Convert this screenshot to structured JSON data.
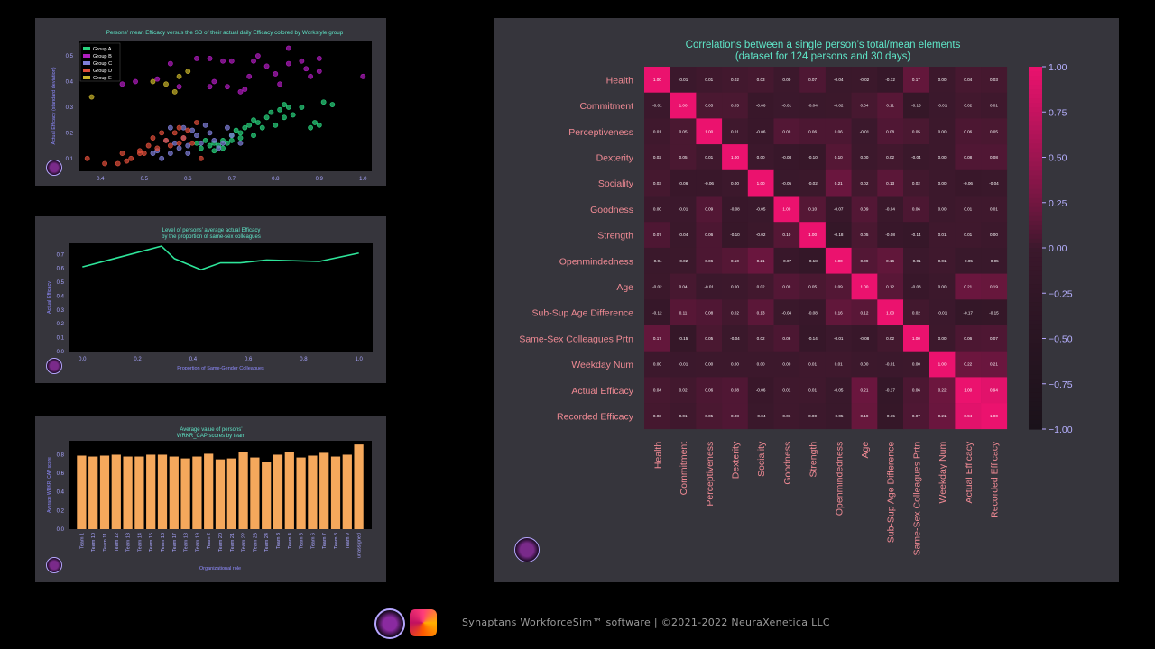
{
  "footer": {
    "text": "Synaptans WorkforceSim™ software |  ©2021-2022 NeuraXenetica LLC"
  },
  "chart_data": [
    {
      "id": "scatter",
      "type": "scatter",
      "title": "Persons’ mean Efficacy versus the SD of their actual daily Efficacy colored by Workstyle group",
      "xlabel": "Actual Efficacy (mean)",
      "ylabel": "Actual Efficacy (standard deviation)",
      "xlim": [
        0.35,
        1.02
      ],
      "ylim": [
        0.05,
        0.56
      ],
      "xticks": [
        "0.4",
        "0.5",
        "0.6",
        "0.7",
        "0.8",
        "0.9",
        "1.0"
      ],
      "yticks": [
        "0.1",
        "0.2",
        "0.3",
        "0.4",
        "0.5"
      ],
      "legend_position": "top-left",
      "series": [
        {
          "name": "Group A",
          "color": "#29d37e",
          "points": [
            [
              0.62,
              0.16
            ],
            [
              0.63,
              0.14
            ],
            [
              0.64,
              0.17
            ],
            [
              0.65,
              0.15
            ],
            [
              0.66,
              0.13
            ],
            [
              0.66,
              0.16
            ],
            [
              0.67,
              0.15
            ],
            [
              0.68,
              0.17
            ],
            [
              0.68,
              0.14
            ],
            [
              0.69,
              0.16
            ],
            [
              0.7,
              0.17
            ],
            [
              0.7,
              0.19
            ],
            [
              0.71,
              0.21
            ],
            [
              0.72,
              0.2
            ],
            [
              0.72,
              0.18
            ],
            [
              0.73,
              0.22
            ],
            [
              0.74,
              0.23
            ],
            [
              0.75,
              0.19
            ],
            [
              0.75,
              0.25
            ],
            [
              0.76,
              0.24
            ],
            [
              0.77,
              0.22
            ],
            [
              0.78,
              0.26
            ],
            [
              0.79,
              0.28
            ],
            [
              0.8,
              0.23
            ],
            [
              0.81,
              0.29
            ],
            [
              0.82,
              0.26
            ],
            [
              0.82,
              0.31
            ],
            [
              0.83,
              0.3
            ],
            [
              0.84,
              0.27
            ],
            [
              0.86,
              0.3
            ],
            [
              0.88,
              0.22
            ],
            [
              0.89,
              0.24
            ],
            [
              0.9,
              0.23
            ],
            [
              0.91,
              0.32
            ],
            [
              0.93,
              0.31
            ]
          ]
        },
        {
          "name": "Group B",
          "color": "#b01dbf",
          "points": [
            [
              0.45,
              0.39
            ],
            [
              0.48,
              0.4
            ],
            [
              0.53,
              0.41
            ],
            [
              0.56,
              0.47
            ],
            [
              0.58,
              0.38
            ],
            [
              0.62,
              0.49
            ],
            [
              0.65,
              0.49
            ],
            [
              0.68,
              0.48
            ],
            [
              0.7,
              0.48
            ],
            [
              0.66,
              0.4
            ],
            [
              0.69,
              0.38
            ],
            [
              0.72,
              0.36
            ],
            [
              0.74,
              0.42
            ],
            [
              0.76,
              0.5
            ],
            [
              0.78,
              0.46
            ],
            [
              0.8,
              0.43
            ],
            [
              0.81,
              0.39
            ],
            [
              0.83,
              0.47
            ],
            [
              0.83,
              0.53
            ],
            [
              0.86,
              0.48
            ],
            [
              0.87,
              0.45
            ],
            [
              0.88,
              0.42
            ],
            [
              0.9,
              0.49
            ],
            [
              0.9,
              0.44
            ],
            [
              0.73,
              0.37
            ],
            [
              0.75,
              0.48
            ],
            [
              1.0,
              0.42
            ],
            [
              0.65,
              0.38
            ]
          ]
        },
        {
          "name": "Group C",
          "color": "#7f7fd8",
          "points": [
            [
              0.53,
              0.13
            ],
            [
              0.54,
              0.1
            ],
            [
              0.55,
              0.17
            ],
            [
              0.56,
              0.12
            ],
            [
              0.57,
              0.16
            ],
            [
              0.58,
              0.14
            ],
            [
              0.59,
              0.18
            ],
            [
              0.6,
              0.15
            ],
            [
              0.6,
              0.12
            ],
            [
              0.61,
              0.21
            ],
            [
              0.62,
              0.19
            ],
            [
              0.64,
              0.23
            ],
            [
              0.65,
              0.2
            ],
            [
              0.66,
              0.17
            ],
            [
              0.67,
              0.14
            ],
            [
              0.68,
              0.16
            ],
            [
              0.69,
              0.22
            ],
            [
              0.7,
              0.19
            ],
            [
              0.52,
              0.12
            ],
            [
              0.56,
              0.22
            ],
            [
              0.63,
              0.16
            ],
            [
              0.72,
              0.16
            ],
            [
              0.59,
              0.22
            ]
          ]
        },
        {
          "name": "Group D",
          "color": "#e04f3b",
          "points": [
            [
              0.37,
              0.1
            ],
            [
              0.41,
              0.08
            ],
            [
              0.44,
              0.08
            ],
            [
              0.45,
              0.12
            ],
            [
              0.46,
              0.09
            ],
            [
              0.47,
              0.1
            ],
            [
              0.49,
              0.13
            ],
            [
              0.5,
              0.12
            ],
            [
              0.51,
              0.15
            ],
            [
              0.52,
              0.18
            ],
            [
              0.53,
              0.14
            ],
            [
              0.55,
              0.17
            ],
            [
              0.56,
              0.15
            ],
            [
              0.57,
              0.2
            ],
            [
              0.58,
              0.22
            ],
            [
              0.59,
              0.18
            ],
            [
              0.6,
              0.21
            ],
            [
              0.61,
              0.16
            ],
            [
              0.62,
              0.24
            ],
            [
              0.63,
              0.1
            ],
            [
              0.54,
              0.2
            ],
            [
              0.58,
              0.16
            ],
            [
              0.49,
              0.12
            ]
          ]
        },
        {
          "name": "Group E",
          "color": "#c8b42b",
          "points": [
            [
              0.38,
              0.34
            ],
            [
              0.52,
              0.4
            ],
            [
              0.57,
              0.36
            ],
            [
              0.58,
              0.42
            ],
            [
              0.6,
              0.44
            ],
            [
              0.55,
              0.39
            ]
          ]
        }
      ]
    },
    {
      "id": "line",
      "type": "line",
      "title": "Level of persons’ average actual Efficacy\nby the proportion of same-sex colleagues",
      "xlabel": "Proportion of Same-Gender Colleagues",
      "ylabel": "Actual Efficacy",
      "xlim": [
        -0.05,
        1.05
      ],
      "ylim": [
        0,
        0.78
      ],
      "xticks": [
        "0.0",
        "0.2",
        "0.4",
        "0.6",
        "0.8",
        "1.0"
      ],
      "yticks": [
        "0.0",
        "0.1",
        "0.2",
        "0.3",
        "0.4",
        "0.5",
        "0.6",
        "0.7"
      ],
      "color": "#2ee59a",
      "x": [
        0.0,
        0.286,
        0.333,
        0.429,
        0.5,
        0.571,
        0.667,
        0.857,
        1.0
      ],
      "y": [
        0.61,
        0.76,
        0.67,
        0.59,
        0.64,
        0.64,
        0.66,
        0.65,
        0.71
      ]
    },
    {
      "id": "bar",
      "type": "bar",
      "title": "Average value of persons’\nWRKR_CAP scores by team",
      "xlabel": "Organizational role",
      "ylabel": "Average WRKR_CAP score",
      "ylim": [
        0,
        0.95
      ],
      "yticks": [
        "0.0",
        "0.2",
        "0.4",
        "0.6",
        "0.8"
      ],
      "color": "#f5a85c",
      "categories": [
        "Team 1",
        "Team 10",
        "Team 11",
        "Team 12",
        "Team 13",
        "Team 14",
        "Team 15",
        "Team 16",
        "Team 17",
        "Team 18",
        "Team 19",
        "Team 2",
        "Team 20",
        "Team 21",
        "Team 22",
        "Team 23",
        "Team 24",
        "Team 3",
        "Team 4",
        "Team 5",
        "Team 6",
        "Team 7",
        "Team 8",
        "Team 9",
        "unassigned"
      ],
      "values": [
        0.79,
        0.78,
        0.79,
        0.8,
        0.78,
        0.78,
        0.8,
        0.8,
        0.78,
        0.76,
        0.78,
        0.81,
        0.75,
        0.76,
        0.83,
        0.77,
        0.72,
        0.8,
        0.83,
        0.77,
        0.79,
        0.82,
        0.78,
        0.8,
        0.91
      ]
    },
    {
      "id": "heatmap",
      "type": "heatmap",
      "title": "Correlations between a single person’s total/mean elements\n(dataset for 124 persons and 30 days)",
      "labels": [
        "Health",
        "Commitment",
        "Perceptiveness",
        "Dexterity",
        "Sociality",
        "Goodness",
        "Strength",
        "Openmindedness",
        "Age",
        "Sub-Sup Age Difference",
        "Same-Sex Colleagues Prtn",
        "Weekday Num",
        "Actual Efficacy",
        "Recorded Efficacy"
      ],
      "colorbar_ticks": [
        "1.00",
        "0.75",
        "0.50",
        "0.25",
        "0.00",
        "−0.25",
        "−0.50",
        "−0.75",
        "−1.00"
      ],
      "vmin": -1,
      "vmax": 1,
      "matrix": [
        [
          1.0,
          -0.01,
          0.01,
          0.02,
          0.03,
          -0.0,
          0.07,
          -0.04,
          -0.02,
          -0.12,
          0.17,
          0.0,
          0.04,
          0.03
        ],
        [
          -0.01,
          1.0,
          0.05,
          0.05,
          -0.06,
          -0.01,
          -0.04,
          -0.02,
          0.04,
          0.11,
          -0.15,
          -0.01,
          0.02,
          0.01
        ],
        [
          0.01,
          0.05,
          1.0,
          0.01,
          -0.06,
          0.09,
          0.06,
          0.06,
          -0.01,
          0.08,
          0.05,
          -0.0,
          0.06,
          0.05
        ],
        [
          0.02,
          0.05,
          0.01,
          1.0,
          0.0,
          -0.08,
          -0.1,
          0.1,
          0.0,
          0.02,
          -0.04,
          0.0,
          0.08,
          0.08
        ],
        [
          0.03,
          -0.06,
          -0.06,
          0.0,
          1.0,
          -0.05,
          -0.02,
          0.21,
          0.02,
          0.13,
          0.02,
          0.0,
          -0.06,
          -0.04
        ],
        [
          -0.0,
          -0.01,
          0.09,
          -0.08,
          -0.05,
          1.0,
          0.1,
          -0.07,
          0.09,
          -0.04,
          0.06,
          0.0,
          0.01,
          0.01
        ],
        [
          0.07,
          -0.04,
          0.06,
          -0.1,
          -0.02,
          0.1,
          1.0,
          -0.18,
          0.05,
          -0.08,
          -0.14,
          0.01,
          0.01,
          0.0
        ],
        [
          -0.04,
          -0.02,
          0.06,
          0.1,
          0.21,
          -0.07,
          -0.18,
          1.0,
          0.09,
          0.16,
          -0.01,
          0.01,
          -0.05,
          -0.05
        ],
        [
          -0.02,
          0.04,
          -0.01,
          0.0,
          0.02,
          0.09,
          0.05,
          0.09,
          1.0,
          0.12,
          -0.08,
          0.0,
          0.21,
          0.19
        ],
        [
          -0.12,
          0.11,
          0.08,
          0.02,
          0.13,
          -0.04,
          -0.08,
          0.16,
          0.12,
          1.0,
          0.02,
          -0.01,
          -0.17,
          -0.15
        ],
        [
          0.17,
          -0.15,
          0.05,
          -0.04,
          0.02,
          0.06,
          -0.14,
          -0.01,
          -0.08,
          0.02,
          1.0,
          0.0,
          0.06,
          0.07
        ],
        [
          0.0,
          -0.01,
          -0.0,
          0.0,
          0.0,
          0.0,
          0.01,
          0.01,
          0.0,
          -0.01,
          0.0,
          1.0,
          0.22,
          0.21
        ],
        [
          0.04,
          0.02,
          0.06,
          0.08,
          -0.06,
          0.01,
          0.01,
          -0.05,
          0.21,
          -0.17,
          0.06,
          0.22,
          1.0,
          0.94
        ],
        [
          0.03,
          0.01,
          0.05,
          0.08,
          -0.04,
          0.01,
          0.0,
          -0.05,
          0.19,
          -0.15,
          0.07,
          0.21,
          0.94,
          1.0
        ]
      ]
    }
  ]
}
